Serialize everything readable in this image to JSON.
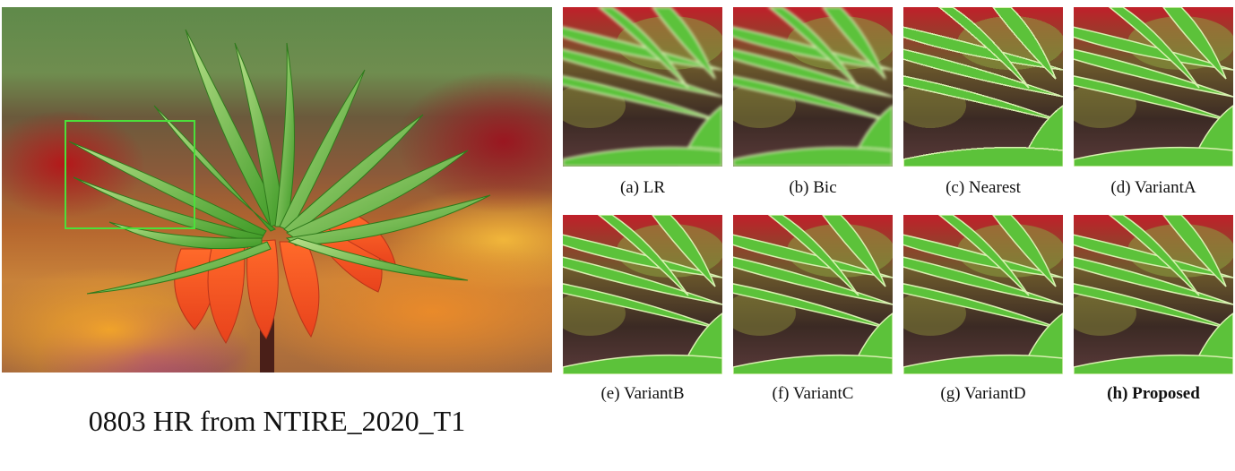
{
  "figure": {
    "main_caption": "0803 HR from NTIRE_2020_T1",
    "highlight_color": "#4be03a",
    "crops": [
      {
        "label": "(a) LR",
        "style": "blurry"
      },
      {
        "label": "(b) Bic",
        "style": "blurry"
      },
      {
        "label": "(c) Nearest",
        "style": "pixelated"
      },
      {
        "label": "(d) VariantA",
        "style": "sharp"
      },
      {
        "label": "(e) VariantB",
        "style": "sharp"
      },
      {
        "label": "(f) VariantC",
        "style": "sharp"
      },
      {
        "label": "(g) VariantD",
        "style": "sharp"
      },
      {
        "label": "(h) Proposed",
        "style": "sharp",
        "emphasis": "bold"
      }
    ]
  }
}
